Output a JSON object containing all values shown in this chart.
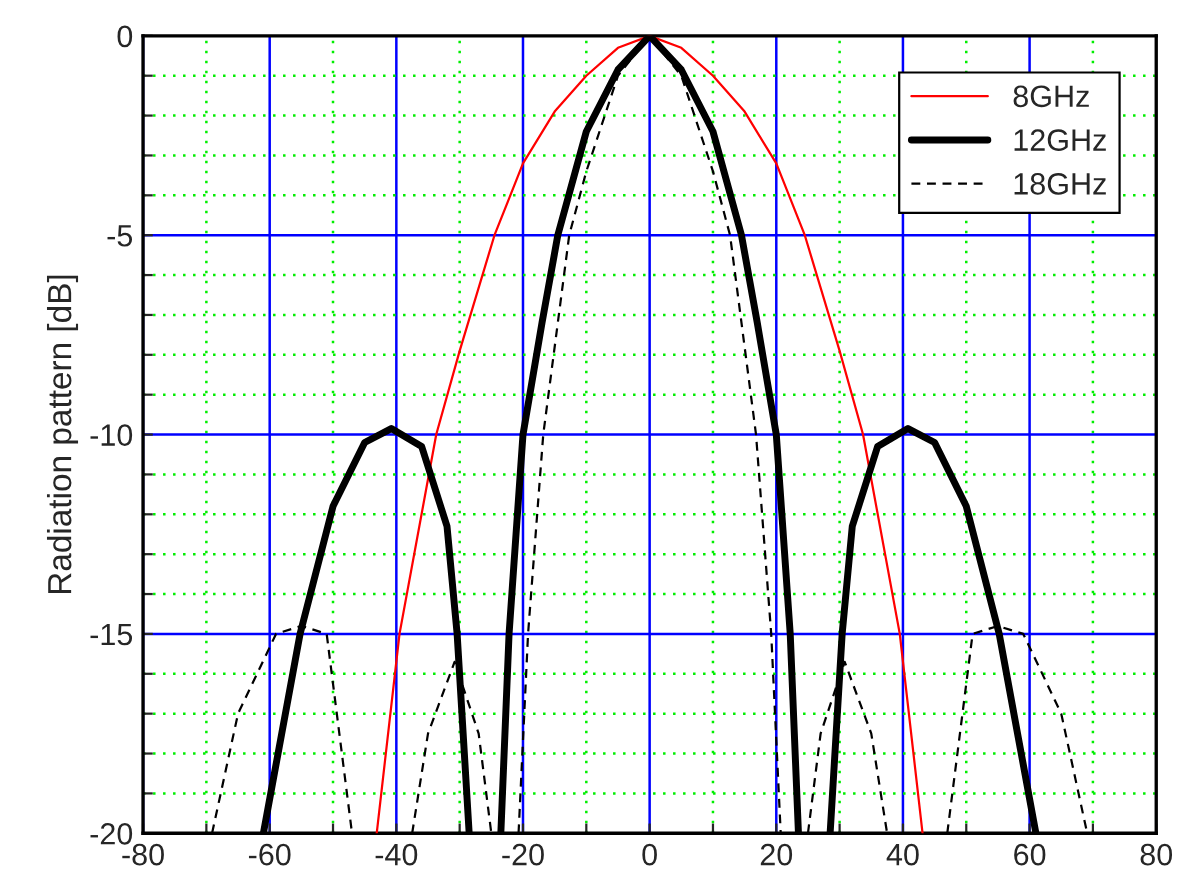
{
  "chart_data": {
    "type": "line",
    "ylabel": "Radiation pattern [dB]",
    "xlim": [
      -80,
      80
    ],
    "xticks": [
      -80,
      {
        "value": -70,
        "label": null
      },
      -60,
      {
        "value": -50,
        "label": null
      },
      -40,
      {
        "value": -30,
        "label": null
      },
      -20,
      {
        "value": -10,
        "label": null
      },
      0,
      {
        "value": 10,
        "label": null
      },
      20,
      {
        "value": 30,
        "label": null
      },
      40,
      {
        "value": 50,
        "label": null
      },
      60,
      {
        "value": 70,
        "label": null
      },
      80
    ],
    "ylim": [
      -20,
      0
    ],
    "yticks": [
      -20,
      {
        "value": -19,
        "label": null
      },
      {
        "value": -18,
        "label": null
      },
      {
        "value": -17,
        "label": null
      },
      {
        "value": -16,
        "label": null
      },
      -15,
      {
        "value": -14,
        "label": null
      },
      {
        "value": -13,
        "label": null
      },
      {
        "value": -12,
        "label": null
      },
      {
        "value": -11,
        "label": null
      },
      -10,
      {
        "value": -9,
        "label": null
      },
      {
        "value": -8,
        "label": null
      },
      {
        "value": -7,
        "label": null
      },
      {
        "value": -6,
        "label": null
      },
      -5,
      {
        "value": -4,
        "label": null
      },
      {
        "value": -3,
        "label": null
      },
      {
        "value": -2,
        "label": null
      },
      {
        "value": -1,
        "label": null
      },
      0
    ],
    "grid": true,
    "legend": "top right",
    "marker": "none",
    "series": [
      {
        "name": "8GHz",
        "color": "#ff0000",
        "line_style": "solid",
        "x": [
          -43.1,
          -39.5,
          -33.7,
          -30,
          -24.5,
          -20,
          -15,
          -10,
          -5,
          0,
          5,
          10,
          15,
          20,
          24.5,
          30,
          33.7,
          39.5,
          43.1
        ],
        "values": [
          -20,
          -15,
          -10,
          -7.9,
          -5,
          -3.2,
          -1.9,
          -1.0,
          -0.3,
          0,
          -0.3,
          -1.0,
          -1.9,
          -3.2,
          -5,
          -7.9,
          -10,
          -15,
          -20
        ]
      },
      {
        "name": "12GHz",
        "color": "#000000",
        "line_style": "solid",
        "x": [
          -61,
          -55.2,
          -50,
          -45,
          -40.8,
          -36,
          -32,
          -30.4,
          -28.5,
          null,
          -23.5,
          -22.2,
          -20,
          -17,
          -14.5,
          -10,
          -5,
          0,
          5,
          10,
          14.5,
          17,
          20,
          22.2,
          23.5,
          null,
          28.5,
          30.4,
          32,
          36,
          40.8,
          45,
          50,
          55.2,
          61
        ],
        "values": [
          -20,
          -15,
          -11.8,
          -10.2,
          -9.85,
          -10.3,
          -12.3,
          -15,
          -20,
          null,
          -20,
          -15,
          -10,
          -7.2,
          -5,
          -2.4,
          -0.85,
          0,
          -0.85,
          -2.4,
          -5,
          -7.2,
          -10,
          -15,
          -20,
          null,
          -20,
          -15,
          -12.3,
          -10.3,
          -9.85,
          -10.2,
          -11.8,
          -15,
          -20
        ]
      },
      {
        "name": "18GHz",
        "color": "#000000",
        "line_style": "dashed",
        "x": [
          -69.1,
          -65,
          -59,
          -55,
          -51,
          -47,
          null,
          -37.5,
          -35,
          -30.8,
          -27,
          -25,
          null,
          -20.7,
          -19.2,
          -16.8,
          -12.7,
          -10,
          -5,
          0,
          5,
          10,
          12.7,
          16.8,
          19.2,
          20.7,
          null,
          25,
          27,
          30.8,
          35,
          37.5,
          null,
          47,
          51,
          55,
          59,
          65,
          69.1
        ],
        "values": [
          -20,
          -17,
          -15,
          -14.8,
          -15,
          -20,
          null,
          -20,
          -17.5,
          -15.7,
          -17.5,
          -20,
          null,
          -20,
          -15,
          -10,
          -5,
          -3.4,
          -1.0,
          0,
          -1.0,
          -3.4,
          -5,
          -10,
          -15,
          -20,
          null,
          -20,
          -17.5,
          -15.7,
          -17.5,
          -20,
          null,
          -20,
          -15,
          -14.8,
          -15,
          -17,
          -20
        ]
      }
    ]
  }
}
